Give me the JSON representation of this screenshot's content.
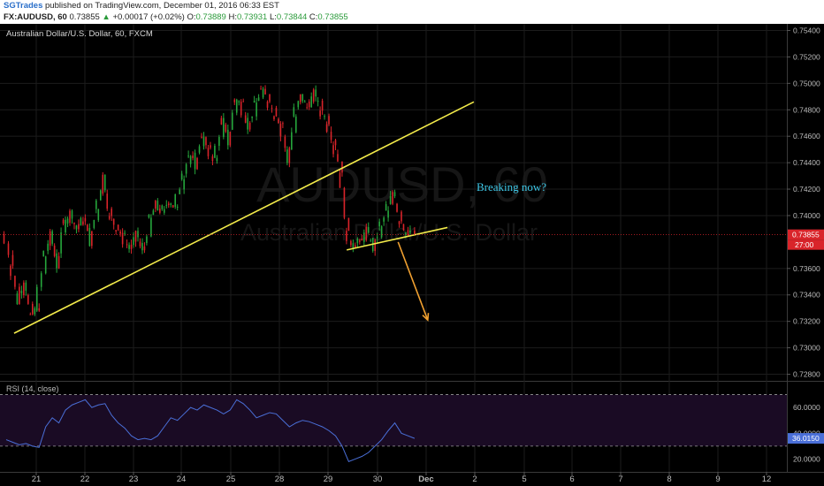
{
  "header": {
    "author": "SGTrades",
    "published_text": "published on TradingView.com, December 01, 2016 06:33 EST",
    "symbol": "FX:AUDUSD, 60",
    "last_price": "0.73855",
    "change_arrow": "▲",
    "change": "+0.00017 (+0.02%)",
    "o_label": "O:",
    "o_value": "0.73889",
    "h_label": "H:",
    "h_value": "0.73931",
    "l_label": "L:",
    "l_value": "0.73844",
    "c_label": "C:",
    "c_value": "0.73855"
  },
  "chart_data": {
    "type": "candlestick",
    "title": "Australian Dollar/U.S. Dollar, 60, FXCM",
    "watermark_symbol": "AUDUSD, 60",
    "watermark_name": "Australian Dollar/U.S. Dollar",
    "x_tick_labels": [
      "21",
      "22",
      "23",
      "24",
      "25",
      "28",
      "29",
      "30",
      "Dec",
      "2",
      "5",
      "6",
      "7",
      "8",
      "9",
      "12"
    ],
    "price_axis_ticks": [
      "0.75400",
      "0.75200",
      "0.75000",
      "0.74800",
      "0.74600",
      "0.74400",
      "0.74200",
      "0.74000",
      "0.73600",
      "0.73400",
      "0.73200",
      "0.73000",
      "0.72800"
    ],
    "ylim": [
      0.7275,
      0.7545
    ],
    "current_price_label": "0.73855",
    "countdown_label": "27:00",
    "current_price": 0.73855,
    "price_path": [
      [
        0,
        0.7386
      ],
      [
        1,
        0.7365
      ],
      [
        2,
        0.7335
      ],
      [
        3,
        0.7352
      ],
      [
        4,
        0.7322
      ],
      [
        5,
        0.7331
      ],
      [
        6,
        0.7368
      ],
      [
        7,
        0.7385
      ],
      [
        8,
        0.7362
      ],
      [
        9,
        0.7395
      ],
      [
        10,
        0.7402
      ],
      [
        11,
        0.739
      ],
      [
        12,
        0.7398
      ],
      [
        13,
        0.738
      ],
      [
        14,
        0.7405
      ],
      [
        15,
        0.743
      ],
      [
        16,
        0.7398
      ],
      [
        17,
        0.7392
      ],
      [
        18,
        0.7384
      ],
      [
        19,
        0.7375
      ],
      [
        20,
        0.7385
      ],
      [
        21,
        0.7372
      ],
      [
        22,
        0.7395
      ],
      [
        23,
        0.7408
      ],
      [
        24,
        0.7402
      ],
      [
        25,
        0.7412
      ],
      [
        26,
        0.7405
      ],
      [
        27,
        0.743
      ],
      [
        28,
        0.7445
      ],
      [
        29,
        0.7438
      ],
      [
        30,
        0.7462
      ],
      [
        31,
        0.7448
      ],
      [
        32,
        0.7442
      ],
      [
        33,
        0.7472
      ],
      [
        34,
        0.7455
      ],
      [
        35,
        0.7488
      ],
      [
        36,
        0.7485
      ],
      [
        37,
        0.7468
      ],
      [
        38,
        0.7482
      ],
      [
        39,
        0.7495
      ],
      [
        40,
        0.7488
      ],
      [
        41,
        0.7478
      ],
      [
        42,
        0.747
      ],
      [
        43,
        0.744
      ],
      [
        44,
        0.7475
      ],
      [
        45,
        0.749
      ],
      [
        46,
        0.7482
      ],
      [
        47,
        0.7492
      ],
      [
        48,
        0.748
      ],
      [
        49,
        0.7472
      ],
      [
        50,
        0.7455
      ],
      [
        51,
        0.7435
      ],
      [
        52,
        0.7385
      ],
      [
        53,
        0.7378
      ],
      [
        54,
        0.738
      ],
      [
        55,
        0.7388
      ],
      [
        56,
        0.7375
      ],
      [
        57,
        0.739
      ],
      [
        58,
        0.7402
      ],
      [
        59,
        0.7418
      ],
      [
        60,
        0.7398
      ],
      [
        61,
        0.7388
      ],
      [
        62,
        0.73855
      ]
    ],
    "annotations": {
      "text": "Breaking now?",
      "text_color": "#3ec8e8",
      "trendline_color": "#f2ea4a",
      "arrow_color": "#f0a030",
      "main_trendline": [
        [
          1.2,
          0.7311
        ],
        [
          71,
          0.7486
        ]
      ],
      "lower_trendline": [
        [
          51.7,
          0.7374
        ],
        [
          67,
          0.7391
        ]
      ],
      "arrow": [
        [
          59.5,
          0.738
        ],
        [
          64,
          0.7321
        ]
      ]
    },
    "rsi": {
      "label": "RSI (14, close)",
      "ylim": [
        10,
        80
      ],
      "upper_band": 70,
      "lower_band": 30,
      "tick_labels": [
        "60.0000",
        "40.0000",
        "20.0000"
      ],
      "last_value_label": "36.0150",
      "last_value": 36.015,
      "values": [
        [
          0,
          35
        ],
        [
          1,
          33
        ],
        [
          2,
          31
        ],
        [
          3,
          32
        ],
        [
          4,
          30
        ],
        [
          5,
          29
        ],
        [
          6,
          45
        ],
        [
          7,
          52
        ],
        [
          8,
          48
        ],
        [
          9,
          58
        ],
        [
          10,
          62
        ],
        [
          11,
          64
        ],
        [
          12,
          66
        ],
        [
          13,
          60
        ],
        [
          14,
          62
        ],
        [
          15,
          63
        ],
        [
          16,
          54
        ],
        [
          17,
          48
        ],
        [
          18,
          44
        ],
        [
          19,
          38
        ],
        [
          20,
          35
        ],
        [
          21,
          36
        ],
        [
          22,
          35
        ],
        [
          23,
          38
        ],
        [
          24,
          45
        ],
        [
          25,
          52
        ],
        [
          26,
          50
        ],
        [
          27,
          55
        ],
        [
          28,
          60
        ],
        [
          29,
          58
        ],
        [
          30,
          62
        ],
        [
          31,
          60
        ],
        [
          32,
          58
        ],
        [
          33,
          55
        ],
        [
          34,
          58
        ],
        [
          35,
          66
        ],
        [
          36,
          63
        ],
        [
          37,
          58
        ],
        [
          38,
          52
        ],
        [
          39,
          54
        ],
        [
          40,
          56
        ],
        [
          41,
          55
        ],
        [
          42,
          50
        ],
        [
          43,
          45
        ],
        [
          44,
          48
        ],
        [
          45,
          50
        ],
        [
          46,
          49
        ],
        [
          47,
          47
        ],
        [
          48,
          45
        ],
        [
          49,
          42
        ],
        [
          50,
          38
        ],
        [
          51,
          30
        ],
        [
          52,
          18
        ],
        [
          53,
          20
        ],
        [
          54,
          22
        ],
        [
          55,
          25
        ],
        [
          56,
          30
        ],
        [
          57,
          35
        ],
        [
          58,
          42
        ],
        [
          59,
          48
        ],
        [
          60,
          40
        ],
        [
          61,
          38
        ],
        [
          62,
          36
        ]
      ]
    },
    "colors": {
      "up": "#26a63c",
      "down": "#d9242a",
      "rsi_line": "#4a6fd8",
      "rsi_band_fill": "#1a0b24",
      "price_line": "#d9242a",
      "grid": "#1c1c1c"
    }
  }
}
